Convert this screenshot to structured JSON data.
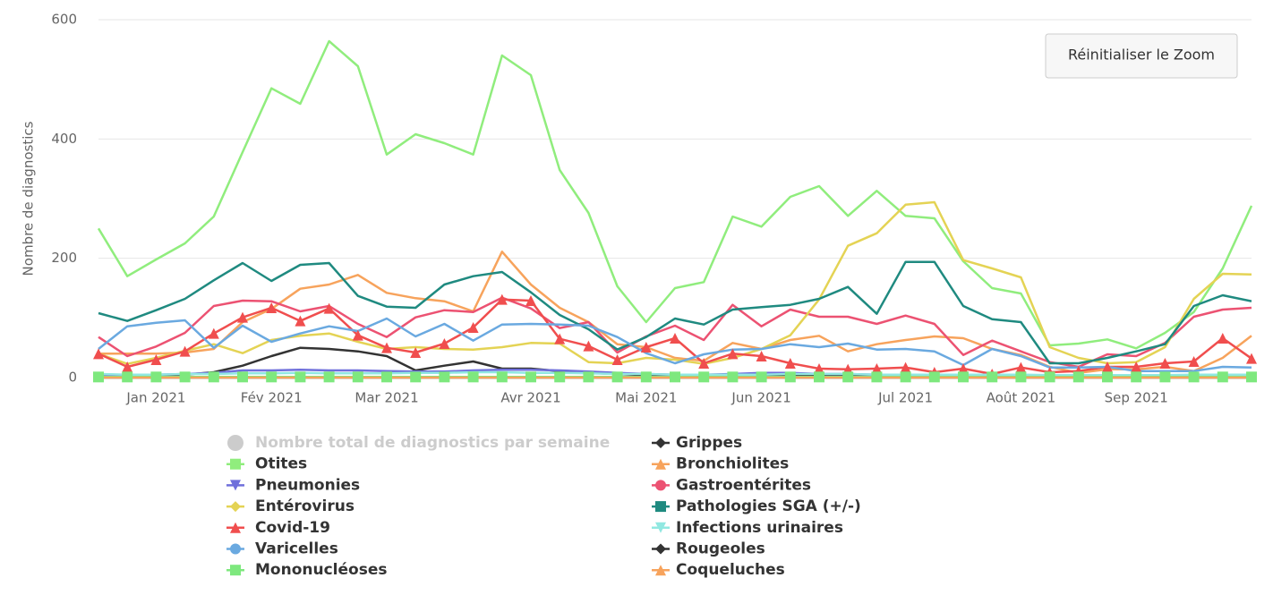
{
  "reset_zoom_button": "Réinitialiser le Zoom",
  "chart_data": {
    "type": "line",
    "y_axis_label": "Nombre de diagnostics",
    "categories": [
      null,
      null,
      "Jan 2021",
      null,
      null,
      null,
      "Fév 2021",
      null,
      null,
      null,
      "Mar 2021",
      null,
      null,
      null,
      null,
      "Avr 2021",
      null,
      null,
      null,
      "Mai 2021",
      null,
      null,
      null,
      "Jun 2021",
      null,
      null,
      null,
      null,
      "Jul 2021",
      null,
      null,
      null,
      "Août 2021",
      null,
      null,
      null,
      "Sep 2021",
      null,
      null,
      null,
      null
    ],
    "ylim": [
      0,
      600
    ],
    "yticks": [
      0,
      200,
      400,
      600
    ],
    "grid": true,
    "hidden_series": [
      {
        "name": "Nombre total de diagnostics par semaine",
        "marker": "circle",
        "color": "#cccccc"
      }
    ],
    "series": [
      {
        "name": "Grippes",
        "color": "#333333",
        "marker": "diamond",
        "show_markers": false,
        "values": [
          3,
          3,
          4,
          5,
          9,
          20,
          36,
          50,
          48,
          44,
          36,
          12,
          20,
          27,
          15,
          15,
          11,
          8,
          6,
          4,
          3,
          3,
          3,
          3,
          3,
          3,
          3,
          2,
          2,
          2,
          2,
          2,
          2,
          2,
          2,
          2,
          2,
          2,
          3,
          3,
          3
        ]
      },
      {
        "name": "Otites",
        "color": "#90ed7d",
        "marker": "square",
        "show_markers": false,
        "values": [
          250,
          170,
          198,
          225,
          270,
          378,
          485,
          459,
          564,
          522,
          374,
          408,
          393,
          374,
          540,
          507,
          348,
          276,
          153,
          93,
          150,
          160,
          270,
          253,
          303,
          321,
          271,
          313,
          271,
          267,
          195,
          150,
          141,
          54,
          57,
          64,
          49,
          75,
          110,
          183,
          288
        ]
      },
      {
        "name": "Bronchiolites",
        "color": "#f7a35c",
        "marker": "triangle",
        "show_markers": false,
        "values": [
          40,
          40,
          40,
          42,
          48,
          93,
          115,
          149,
          156,
          172,
          142,
          133,
          128,
          111,
          211,
          156,
          117,
          93,
          56,
          51,
          33,
          28,
          58,
          48,
          63,
          70,
          44,
          56,
          63,
          69,
          66,
          48,
          38,
          18,
          8,
          14,
          14,
          18,
          11,
          33,
          70
        ]
      },
      {
        "name": "Pneumonies",
        "color": "#6f6fdb",
        "marker": "triangle-down",
        "show_markers": false,
        "values": [
          5,
          4,
          5,
          6,
          8,
          12,
          12,
          13,
          12,
          12,
          11,
          10,
          10,
          12,
          13,
          13,
          12,
          10,
          8,
          6,
          5,
          5,
          6,
          8,
          8,
          6,
          6,
          5,
          5,
          5,
          4,
          5,
          4,
          3,
          3,
          3,
          3,
          3,
          3,
          3,
          3
        ]
      },
      {
        "name": "Gastroentérites",
        "color": "#ec5272",
        "marker": "circle",
        "show_markers": false,
        "values": [
          68,
          36,
          52,
          75,
          120,
          129,
          128,
          111,
          120,
          90,
          68,
          101,
          113,
          110,
          134,
          116,
          83,
          93,
          42,
          69,
          87,
          63,
          122,
          86,
          114,
          102,
          102,
          90,
          104,
          90,
          38,
          62,
          44,
          26,
          18,
          39,
          36,
          58,
          102,
          114,
          117
        ]
      },
      {
        "name": "Entérovirus",
        "color": "#e4d354",
        "marker": "diamond",
        "show_markers": false,
        "values": [
          40,
          23,
          33,
          45,
          56,
          41,
          63,
          70,
          74,
          60,
          48,
          51,
          48,
          47,
          51,
          58,
          57,
          26,
          24,
          33,
          30,
          23,
          33,
          48,
          71,
          131,
          221,
          242,
          290,
          294,
          197,
          183,
          168,
          51,
          33,
          24,
          26,
          51,
          132,
          174,
          173
        ]
      },
      {
        "name": "Pathologies SGA (+/-)",
        "color": "#1f8a80",
        "marker": "square",
        "show_markers": false,
        "values": [
          108,
          95,
          113,
          132,
          163,
          192,
          162,
          189,
          192,
          137,
          119,
          117,
          156,
          170,
          177,
          143,
          105,
          81,
          47,
          68,
          99,
          89,
          114,
          118,
          122,
          132,
          152,
          107,
          194,
          194,
          120,
          98,
          93,
          24,
          24,
          33,
          44,
          56,
          120,
          138,
          128
        ]
      },
      {
        "name": "Covid-19",
        "color": "#f04e4e",
        "marker": "triangle",
        "show_markers": true,
        "values": [
          40,
          18,
          30,
          44,
          74,
          101,
          117,
          95,
          116,
          71,
          50,
          42,
          57,
          84,
          131,
          129,
          65,
          53,
          30,
          51,
          66,
          24,
          40,
          36,
          24,
          15,
          14,
          15,
          17,
          9,
          15,
          6,
          17,
          9,
          11,
          18,
          18,
          24,
          27,
          66,
          32
        ]
      },
      {
        "name": "Infections urinaires",
        "color": "#91e8e1",
        "marker": "triangle-down",
        "show_markers": false,
        "values": [
          6,
          5,
          5,
          6,
          6,
          7,
          7,
          8,
          7,
          7,
          7,
          8,
          8,
          9,
          9,
          8,
          8,
          7,
          6,
          6,
          5,
          5,
          5,
          5,
          6,
          6,
          6,
          5,
          5,
          5,
          5,
          5,
          5,
          4,
          4,
          4,
          4,
          4,
          5,
          5,
          5
        ]
      },
      {
        "name": "Varicelles",
        "color": "#6aa9e0",
        "marker": "circle",
        "show_markers": false,
        "values": [
          48,
          86,
          92,
          96,
          50,
          87,
          60,
          74,
          86,
          78,
          99,
          69,
          90,
          62,
          89,
          90,
          89,
          87,
          68,
          41,
          24,
          39,
          47,
          48,
          56,
          51,
          57,
          47,
          48,
          44,
          21,
          48,
          36,
          17,
          17,
          18,
          11,
          11,
          11,
          18,
          17
        ]
      },
      {
        "name": "Rougeoles",
        "color": "#333333",
        "marker": "diamond",
        "show_markers": false,
        "values": [
          0,
          0,
          0,
          0,
          0,
          0,
          0,
          0,
          0,
          0,
          0,
          0,
          0,
          0,
          0,
          0,
          0,
          0,
          0,
          0,
          0,
          0,
          0,
          0,
          0,
          0,
          0,
          0,
          0,
          0,
          0,
          0,
          0,
          0,
          0,
          0,
          0,
          0,
          0,
          0,
          0
        ]
      },
      {
        "name": "Mononucléoses",
        "color": "#7ee87e",
        "marker": "square",
        "show_markers": true,
        "values": [
          1,
          1,
          1,
          1,
          1,
          1,
          1,
          1,
          1,
          1,
          1,
          1,
          1,
          1,
          1,
          1,
          1,
          1,
          1,
          1,
          1,
          1,
          1,
          1,
          1,
          1,
          1,
          1,
          1,
          1,
          1,
          1,
          1,
          1,
          1,
          1,
          1,
          1,
          1,
          1,
          1
        ]
      },
      {
        "name": "Coqueluches",
        "color": "#f7a35c",
        "marker": "triangle",
        "show_markers": false,
        "values": [
          0,
          0,
          0,
          0,
          0,
          0,
          0,
          0,
          0,
          0,
          0,
          0,
          0,
          0,
          0,
          0,
          0,
          0,
          0,
          0,
          0,
          0,
          0,
          0,
          0,
          0,
          0,
          0,
          0,
          0,
          0,
          0,
          0,
          0,
          0,
          0,
          0,
          0,
          0,
          0,
          0
        ]
      }
    ]
  }
}
